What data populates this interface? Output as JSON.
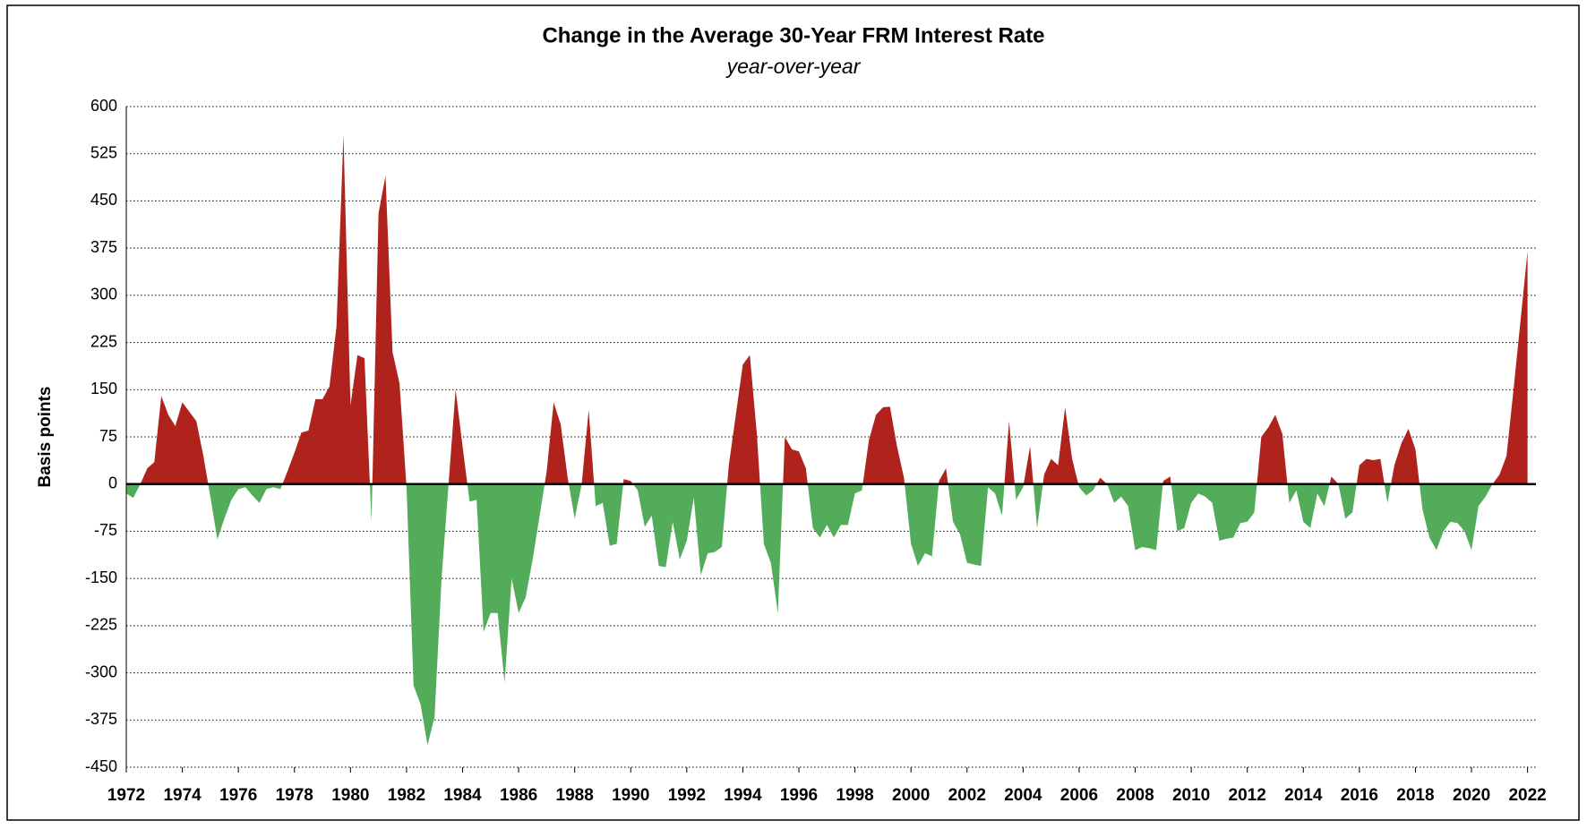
{
  "chart_data": {
    "type": "area",
    "title": "Change in the Average 30-Year FRM Interest Rate",
    "subtitle": "year-over-year",
    "y_label": "Basis points",
    "positive_color": "#b0231c",
    "negative_color": "#52ac5a",
    "grid": true,
    "xlim": [
      1972,
      2022.3
    ],
    "xticks": [
      1972,
      1974,
      1976,
      1978,
      1980,
      1982,
      1984,
      1986,
      1988,
      1990,
      1992,
      1994,
      1996,
      1998,
      2000,
      2002,
      2004,
      2006,
      2008,
      2010,
      2012,
      2014,
      2016,
      2018,
      2020,
      2022
    ],
    "ylim": [
      -450,
      600
    ],
    "yticks": [
      -450,
      -375,
      -300,
      -225,
      -150,
      -75,
      0,
      75,
      150,
      225,
      300,
      375,
      450,
      525,
      600
    ],
    "x": [
      1972,
      1972.25,
      1972.5,
      1972.75,
      1973,
      1973.25,
      1973.5,
      1973.75,
      1974,
      1974.25,
      1974.5,
      1974.75,
      1975,
      1975.25,
      1975.5,
      1975.75,
      1976,
      1976.25,
      1976.5,
      1976.75,
      1977,
      1977.25,
      1977.5,
      1977.75,
      1978,
      1978.25,
      1978.5,
      1978.75,
      1979,
      1979.25,
      1979.5,
      1979.75,
      1980,
      1980.25,
      1980.5,
      1980.75,
      1981,
      1981.25,
      1981.5,
      1981.75,
      1982,
      1982.25,
      1982.5,
      1982.75,
      1983,
      1983.25,
      1983.5,
      1983.75,
      1984,
      1984.25,
      1984.5,
      1984.75,
      1985,
      1985.25,
      1985.5,
      1985.75,
      1986,
      1986.25,
      1986.5,
      1986.75,
      1987,
      1987.25,
      1987.5,
      1987.75,
      1988,
      1988.25,
      1988.5,
      1988.75,
      1989,
      1989.25,
      1989.5,
      1989.75,
      1990,
      1990.25,
      1990.5,
      1990.75,
      1991,
      1991.25,
      1991.5,
      1991.75,
      1992,
      1992.25,
      1992.5,
      1992.75,
      1993,
      1993.25,
      1993.5,
      1993.75,
      1994,
      1994.25,
      1994.5,
      1994.75,
      1995,
      1995.25,
      1995.5,
      1995.75,
      1996,
      1996.25,
      1996.5,
      1996.75,
      1997,
      1997.25,
      1997.5,
      1997.75,
      1998,
      1998.25,
      1998.5,
      1998.75,
      1999,
      1999.25,
      1999.5,
      1999.75,
      2000,
      2000.25,
      2000.5,
      2000.75,
      2001,
      2001.25,
      2001.5,
      2001.75,
      2002,
      2002.25,
      2002.5,
      2002.75,
      2003,
      2003.25,
      2003.5,
      2003.75,
      2004,
      2004.25,
      2004.5,
      2004.75,
      2005,
      2005.25,
      2005.5,
      2005.75,
      2006,
      2006.25,
      2006.5,
      2006.75,
      2007,
      2007.25,
      2007.5,
      2007.75,
      2008,
      2008.25,
      2008.5,
      2008.75,
      2009,
      2009.25,
      2009.5,
      2009.75,
      2010,
      2010.25,
      2010.5,
      2010.75,
      2011,
      2011.25,
      2011.5,
      2011.75,
      2012,
      2012.25,
      2012.5,
      2012.75,
      2013,
      2013.25,
      2013.5,
      2013.75,
      2014,
      2014.25,
      2014.5,
      2014.75,
      2015,
      2015.25,
      2015.5,
      2015.75,
      2016,
      2016.25,
      2016.5,
      2016.75,
      2017,
      2017.25,
      2017.5,
      2017.75,
      2018,
      2018.25,
      2018.5,
      2018.75,
      2019,
      2019.25,
      2019.5,
      2019.75,
      2020,
      2020.25,
      2020.5,
      2020.75,
      2021,
      2021.25,
      2021.5,
      2021.75,
      2022
    ],
    "series": [
      {
        "values": [
          -15,
          -22,
          0,
          25,
          35,
          140,
          110,
          92,
          130,
          115,
          100,
          45,
          -20,
          -88,
          -55,
          -25,
          -8,
          -5,
          -18,
          -30,
          -8,
          -5,
          -8,
          20,
          50,
          82,
          85,
          135,
          135,
          155,
          250,
          555,
          125,
          205,
          200,
          -60,
          430,
          490,
          210,
          160,
          -5,
          -320,
          -350,
          -415,
          -370,
          -150,
          0,
          150,
          60,
          -28,
          -25,
          -235,
          -205,
          -205,
          -315,
          -150,
          -205,
          -180,
          -120,
          -50,
          20,
          130,
          95,
          10,
          -55,
          0,
          118,
          -35,
          -30,
          -98,
          -95,
          8,
          5,
          -10,
          -68,
          -50,
          -130,
          -132,
          -60,
          -120,
          -90,
          -22,
          -145,
          -110,
          -108,
          -100,
          30,
          110,
          190,
          205,
          80,
          -95,
          -125,
          -205,
          75,
          55,
          52,
          25,
          -70,
          -85,
          -65,
          -85,
          -65,
          -65,
          -15,
          -10,
          70,
          110,
          122,
          123,
          60,
          10,
          -95,
          -130,
          -110,
          -115,
          5,
          25,
          -60,
          -80,
          -125,
          -128,
          -130,
          -5,
          -15,
          -50,
          100,
          -25,
          -5,
          60,
          -70,
          15,
          40,
          30,
          122,
          40,
          -5,
          -18,
          -10,
          10,
          0,
          -30,
          -20,
          -35,
          -105,
          -100,
          -102,
          -105,
          5,
          12,
          -75,
          -70,
          -30,
          -15,
          -20,
          -30,
          -90,
          -87,
          -85,
          -62,
          -60,
          -45,
          75,
          90,
          110,
          80,
          -30,
          -10,
          -60,
          -70,
          -15,
          -35,
          12,
          0,
          -55,
          -45,
          30,
          40,
          38,
          40,
          -30,
          30,
          65,
          88,
          55,
          -40,
          -85,
          -105,
          -75,
          -60,
          -62,
          -75,
          -105,
          -35,
          -20,
          0,
          15,
          45,
          150,
          260,
          370
        ]
      }
    ]
  }
}
